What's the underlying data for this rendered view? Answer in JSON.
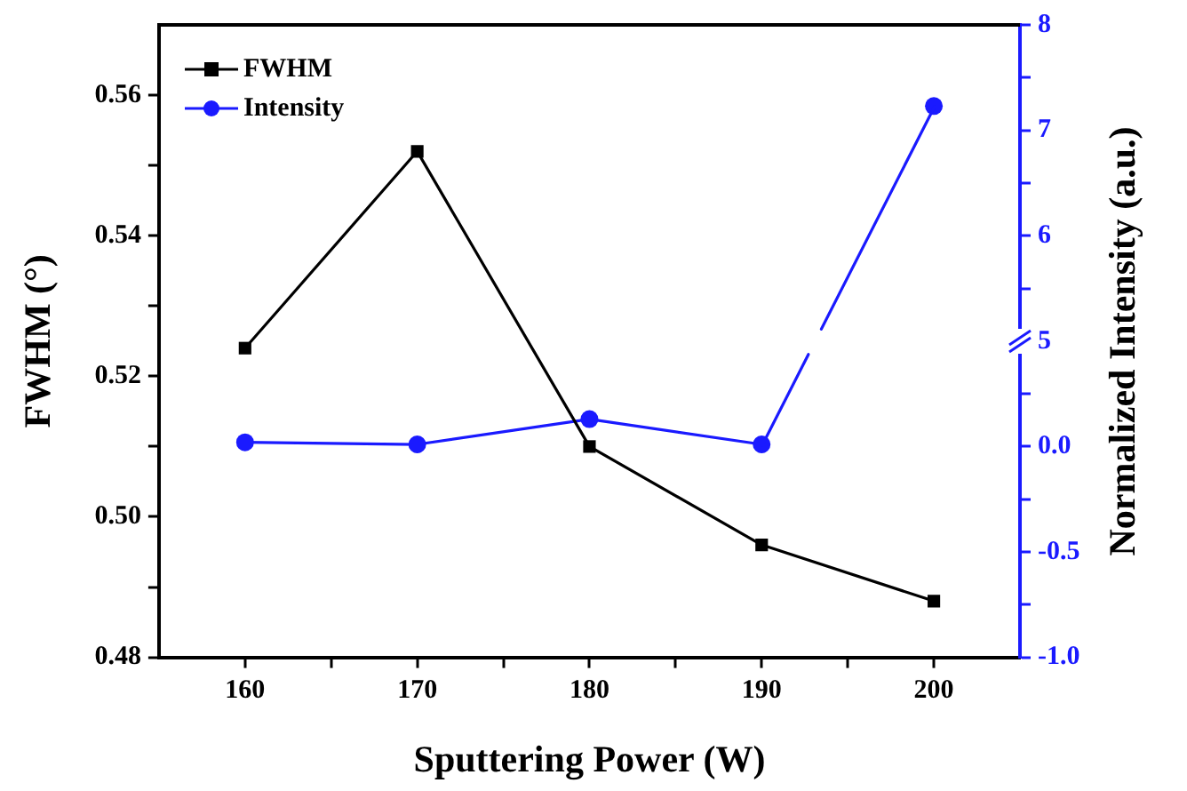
{
  "chart_data": {
    "type": "line",
    "xlabel": "Sputtering Power (W)",
    "ylabel": "FWHM (°)",
    "y2label": "Normalized Intensity (a.u.)",
    "x": [
      160,
      170,
      180,
      190,
      200
    ],
    "series": [
      {
        "name": "FWHM",
        "color": "#000000",
        "marker": "square",
        "values": [
          0.524,
          0.552,
          0.51,
          0.496,
          0.488
        ]
      },
      {
        "name": "Intensity",
        "color": "#1a1aff",
        "marker": "circle",
        "axis": "y2",
        "values": [
          0.02,
          0.01,
          0.13,
          0.01,
          null
        ]
      },
      {
        "color": "#1a1aff",
        "marker": "circle",
        "axis": "y3",
        "values": [
          null,
          null,
          null,
          null,
          7.23
        ]
      }
    ],
    "xlim": [
      155,
      205
    ],
    "xticks": [
      160,
      {
        "value": 165,
        "label": null
      },
      170,
      {
        "value": 175,
        "label": null
      },
      180,
      {
        "value": 185,
        "label": null
      },
      190,
      {
        "value": 195,
        "label": null
      },
      200
    ],
    "ylim": [
      0.48,
      0.57
    ],
    "yticks": [
      0.48,
      {
        "value": 0.49,
        "label": null
      },
      {
        "value": 0.5,
        "label": "0.50"
      },
      {
        "value": 0.51,
        "label": null
      },
      0.52,
      {
        "value": 0.53,
        "label": null
      },
      0.54,
      {
        "value": 0.55,
        "label": null
      },
      0.56
    ],
    "y2lim": [
      -1,
      0.5
    ],
    "y2ticks": [
      {
        "value": -1,
        "label": "-1.0"
      },
      {
        "value": -0.75,
        "label": null
      },
      {
        "value": -0.5,
        "label": "-0.5"
      },
      {
        "value": -0.25,
        "label": null
      },
      {
        "value": 0,
        "label": "0.0"
      },
      {
        "value": 0.25,
        "label": null
      }
    ],
    "y3lim": [
      5,
      8
    ],
    "y3ticks": [
      5,
      {
        "value": 5.5,
        "label": null
      },
      6,
      {
        "value": 6.5,
        "label": null
      },
      7,
      {
        "value": 7.5,
        "label": null
      },
      8
    ],
    "legend": "top left",
    "grid": false,
    "line_style": "solid"
  }
}
